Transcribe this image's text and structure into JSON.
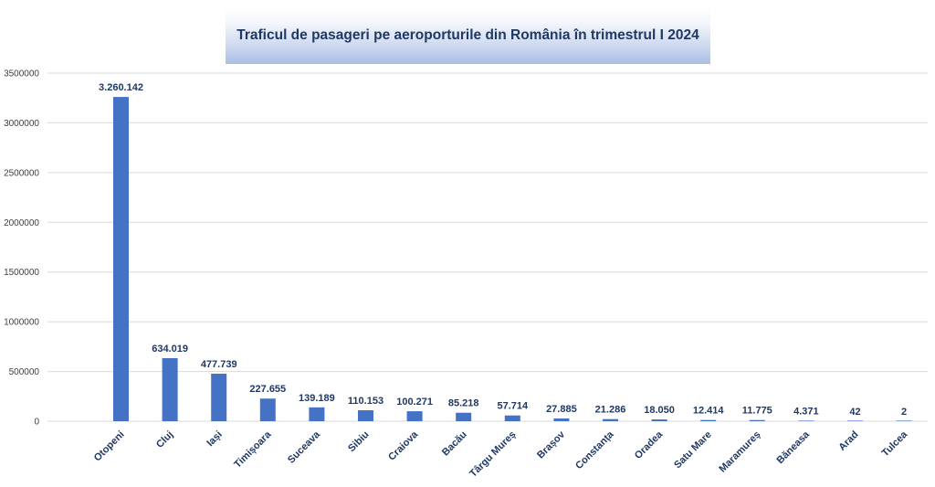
{
  "chart_data": {
    "type": "bar",
    "title": "Traficul de pasageri pe aeroporturile din România în trimestrul I 2024",
    "categories": [
      "Otopeni",
      "Cluj",
      "Iași",
      "Timișoara",
      "Suceava",
      "Sibiu",
      "Craiova",
      "Bacău",
      "Târgu Mureș",
      "Brașov",
      "Constanța",
      "Oradea",
      "Satu Mare",
      "Maramureș",
      "Băneasa",
      "Arad",
      "Tulcea"
    ],
    "values": [
      3260142,
      634019,
      477739,
      227655,
      139189,
      110153,
      100271,
      85218,
      57714,
      27885,
      21286,
      18050,
      12414,
      11775,
      4371,
      42,
      2
    ],
    "data_labels": [
      "3.260.142",
      "634.019",
      "477.739",
      "227.655",
      "139.189",
      "110.153",
      "100.271",
      "85.218",
      "57.714",
      "27.885",
      "21.286",
      "18.050",
      "12.414",
      "11.775",
      "4.371",
      "42",
      "2"
    ],
    "yticks": [
      0,
      500000,
      1000000,
      1500000,
      2000000,
      2500000,
      3000000,
      3500000
    ],
    "ytick_labels": [
      "0",
      "500000",
      "1000000",
      "1500000",
      "2000000",
      "2500000",
      "3000000",
      "3500000"
    ],
    "ylim": [
      0,
      3500000
    ],
    "xlabel": "",
    "ylabel": "",
    "grid": true,
    "legend": "none",
    "bar_color": "#4472c4",
    "label_color": "#1f3864"
  }
}
